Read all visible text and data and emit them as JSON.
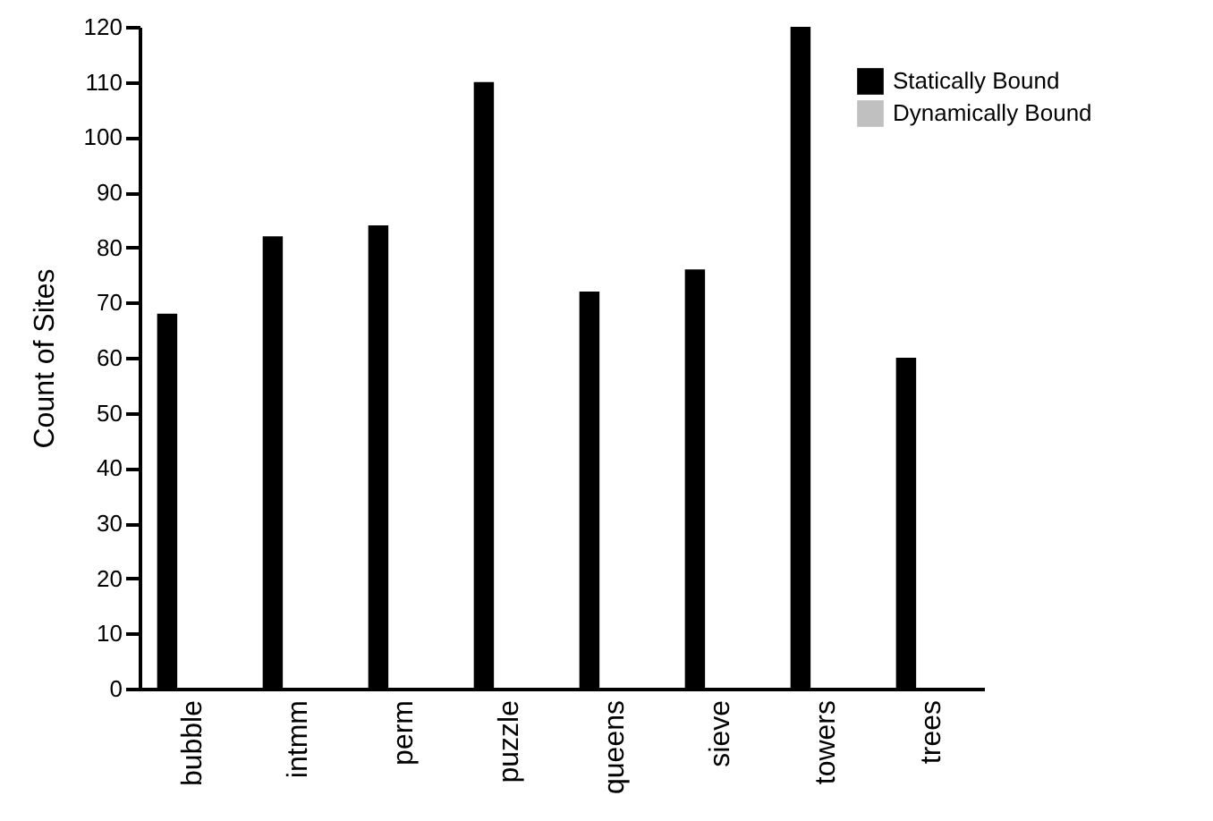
{
  "chart_data": {
    "type": "bar",
    "ylabel": "Count of Sites",
    "categories": [
      "bubble",
      "intmm",
      "perm",
      "puzzle",
      "queens",
      "sieve",
      "towers",
      "trees"
    ],
    "series": [
      {
        "name": "Statically Bound",
        "color": "#000000",
        "values": [
          68,
          82,
          84,
          110,
          72,
          76,
          120,
          60
        ]
      },
      {
        "name": "Dynamically Bound",
        "color": "#c0c0c0",
        "values": [
          0,
          0,
          0,
          0,
          0,
          0,
          0,
          0
        ]
      }
    ],
    "ylim": [
      0,
      120
    ],
    "yticks": [
      0,
      10,
      20,
      30,
      40,
      50,
      60,
      70,
      80,
      90,
      100,
      110,
      120
    ],
    "grid": false,
    "legend": "top right"
  }
}
